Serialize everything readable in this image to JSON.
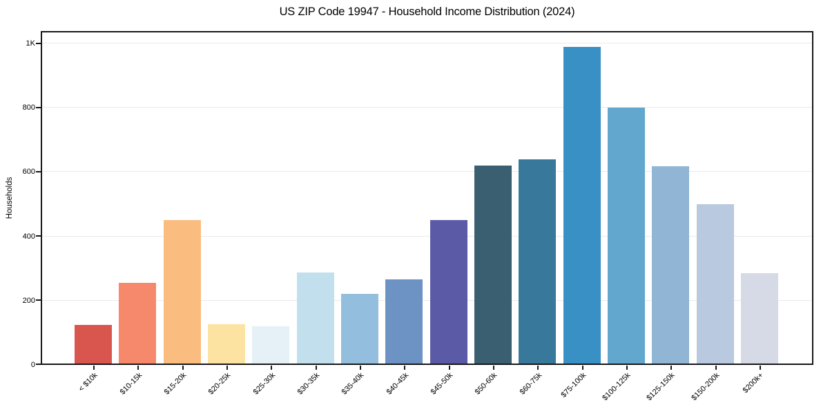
{
  "figure": {
    "title": "US ZIP Code 19947 - Household Income Distribution (2024)",
    "background": "#ffffff"
  },
  "chart_data": {
    "type": "bar",
    "title": "US ZIP Code 19947 - Household Income Distribution (2024)",
    "xlabel": "",
    "ylabel": "Households",
    "categories": [
      "< $10k",
      "$10-15k",
      "$15-20k",
      "$20-25k",
      "$25-30k",
      "$30-35k",
      "$35-40k",
      "$40-45k",
      "$45-50k",
      "$50-60k",
      "$60-75k",
      "$75-100k",
      "$100-125k",
      "$125-150k",
      "$150-200k",
      "$200k+"
    ],
    "values": [
      125,
      255,
      450,
      127,
      120,
      287,
      220,
      267,
      450,
      620,
      640,
      990,
      800,
      617,
      500,
      285
    ],
    "bar_colors": [
      "#d8564d",
      "#f6896b",
      "#fabd7f",
      "#fce3a2",
      "#e6f1f7",
      "#c1dfec",
      "#94bedd",
      "#6d93c5",
      "#5b5aa7",
      "#3a5f70",
      "#38799b",
      "#3990c5",
      "#62a7ce",
      "#91b5d5",
      "#b9c9e0",
      "#d6d9e6"
    ],
    "yticks": [
      {
        "value": 0,
        "label": "0"
      },
      {
        "value": 200,
        "label": "200"
      },
      {
        "value": 400,
        "label": "400"
      },
      {
        "value": 600,
        "label": "600"
      },
      {
        "value": 800,
        "label": "800"
      },
      {
        "value": 1000,
        "label": "1K"
      }
    ],
    "ylim": [
      0,
      1040
    ],
    "grid": "horizontal",
    "gridline_color": "#e9e9e9",
    "frame_color": "#161616",
    "legend": "none",
    "xtick_rotation_deg": 45
  }
}
